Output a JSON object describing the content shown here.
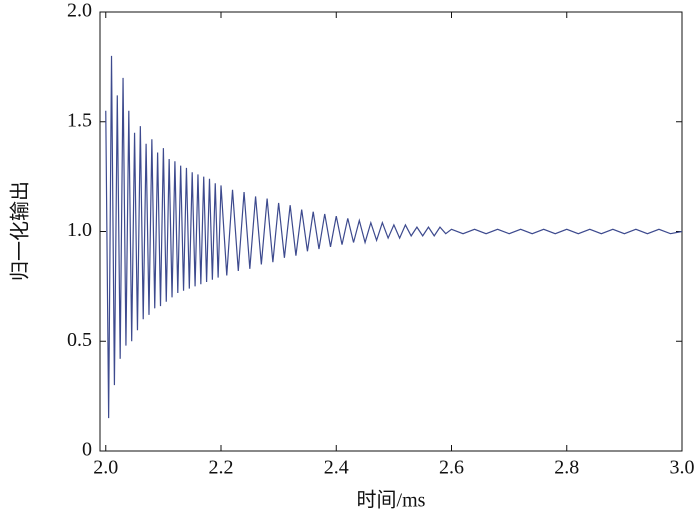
{
  "chart_data": {
    "type": "line",
    "xlabel": "时间/ms",
    "ylabel": "归一化输出",
    "color": "#3d4a8e",
    "x": [
      2.0,
      2.005,
      2.01,
      2.015,
      2.02,
      2.025,
      2.03,
      2.035,
      2.04,
      2.045,
      2.05,
      2.055,
      2.06,
      2.065,
      2.07,
      2.075,
      2.08,
      2.085,
      2.09,
      2.095,
      2.1,
      2.105,
      2.11,
      2.115,
      2.12,
      2.125,
      2.13,
      2.135,
      2.14,
      2.145,
      2.15,
      2.155,
      2.16,
      2.165,
      2.17,
      2.175,
      2.18,
      2.185,
      2.19,
      2.195,
      2.2,
      2.21,
      2.22,
      2.23,
      2.24,
      2.25,
      2.26,
      2.27,
      2.28,
      2.29,
      2.3,
      2.31,
      2.32,
      2.33,
      2.34,
      2.35,
      2.36,
      2.37,
      2.38,
      2.39,
      2.4,
      2.41,
      2.42,
      2.43,
      2.44,
      2.45,
      2.46,
      2.47,
      2.48,
      2.49,
      2.5,
      2.51,
      2.52,
      2.53,
      2.54,
      2.55,
      2.56,
      2.57,
      2.58,
      2.59,
      2.6,
      2.62,
      2.64,
      2.66,
      2.68,
      2.7,
      2.72,
      2.74,
      2.76,
      2.78,
      2.8,
      2.82,
      2.84,
      2.86,
      2.88,
      2.9,
      2.92,
      2.94,
      2.96,
      2.98,
      3.0
    ],
    "values": [
      1.55,
      0.15,
      1.8,
      0.3,
      1.62,
      0.42,
      1.7,
      0.48,
      1.55,
      0.5,
      1.45,
      0.55,
      1.48,
      0.6,
      1.4,
      0.62,
      1.42,
      0.65,
      1.36,
      0.66,
      1.38,
      0.68,
      1.33,
      0.7,
      1.32,
      0.72,
      1.3,
      0.73,
      1.29,
      0.74,
      1.27,
      0.75,
      1.26,
      0.76,
      1.25,
      0.77,
      1.24,
      0.78,
      1.22,
      0.79,
      1.21,
      0.8,
      1.19,
      0.82,
      1.18,
      0.83,
      1.16,
      0.85,
      1.15,
      0.86,
      1.13,
      0.88,
      1.12,
      0.89,
      1.1,
      0.91,
      1.09,
      0.92,
      1.08,
      0.93,
      1.07,
      0.94,
      1.06,
      0.95,
      1.05,
      0.95,
      1.04,
      0.96,
      1.04,
      0.97,
      1.03,
      0.97,
      1.03,
      0.98,
      1.02,
      0.98,
      1.02,
      0.98,
      1.02,
      0.99,
      1.01,
      0.99,
      1.01,
      0.99,
      1.01,
      0.99,
      1.01,
      0.99,
      1.01,
      0.99,
      1.01,
      0.99,
      1.01,
      0.99,
      1.01,
      0.99,
      1.01,
      0.99,
      1.01,
      0.99,
      1.0
    ],
    "xlim": [
      1.99,
      3.0
    ],
    "xticks": [
      {
        "value": 2.0,
        "label": "2.0"
      },
      2.2,
      2.4,
      2.6,
      2.8,
      {
        "value": 3.0,
        "label": "3.0"
      }
    ],
    "ylim": [
      0,
      2.0
    ],
    "yticks": [
      0,
      0.5,
      {
        "value": 1.0,
        "label": "1.0"
      },
      1.5,
      {
        "value": 2.0,
        "label": "2.0"
      }
    ]
  }
}
